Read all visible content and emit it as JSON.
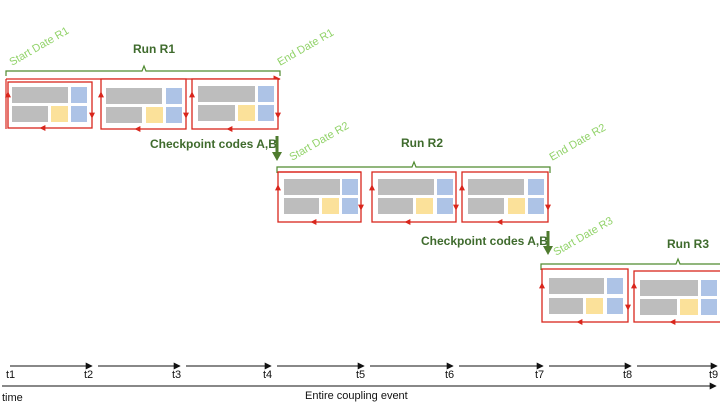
{
  "colors": {
    "brace": "#4f8a2f",
    "run_title": "#3f6b2d",
    "date_label": "#92d36a",
    "checkpoint_arrow": "#4e7b2e",
    "frame": "#d9261c",
    "gray_block": "#bdbdbd",
    "blue_block": "#adc3e6",
    "yellow_block": "#fbe19a",
    "axis": "#111111"
  },
  "icons": {
    "frame": "red-frame-with-arrows",
    "checkpoint_arrow": "down-arrow-icon"
  },
  "runs": [
    {
      "title": "Run R1",
      "start_label": "Start Date R1",
      "end_label": "End Date R1",
      "blocks": 3
    },
    {
      "title": "Run R2",
      "start_label": "Start Date R2",
      "end_label": "End Date R2",
      "blocks": 3
    },
    {
      "title": "Run R3",
      "start_label": "Start Date R3",
      "end_label": "",
      "blocks": 2
    }
  ],
  "checkpoints": [
    {
      "label": "Checkpoint codes A,B"
    },
    {
      "label": "Checkpoint codes A,B"
    }
  ],
  "timeline": {
    "ticks": [
      "t1",
      "t2",
      "t3",
      "t4",
      "t5",
      "t6",
      "t7",
      "t8",
      "t9"
    ],
    "axis_label": "time",
    "caption": "Entire coupling event"
  }
}
